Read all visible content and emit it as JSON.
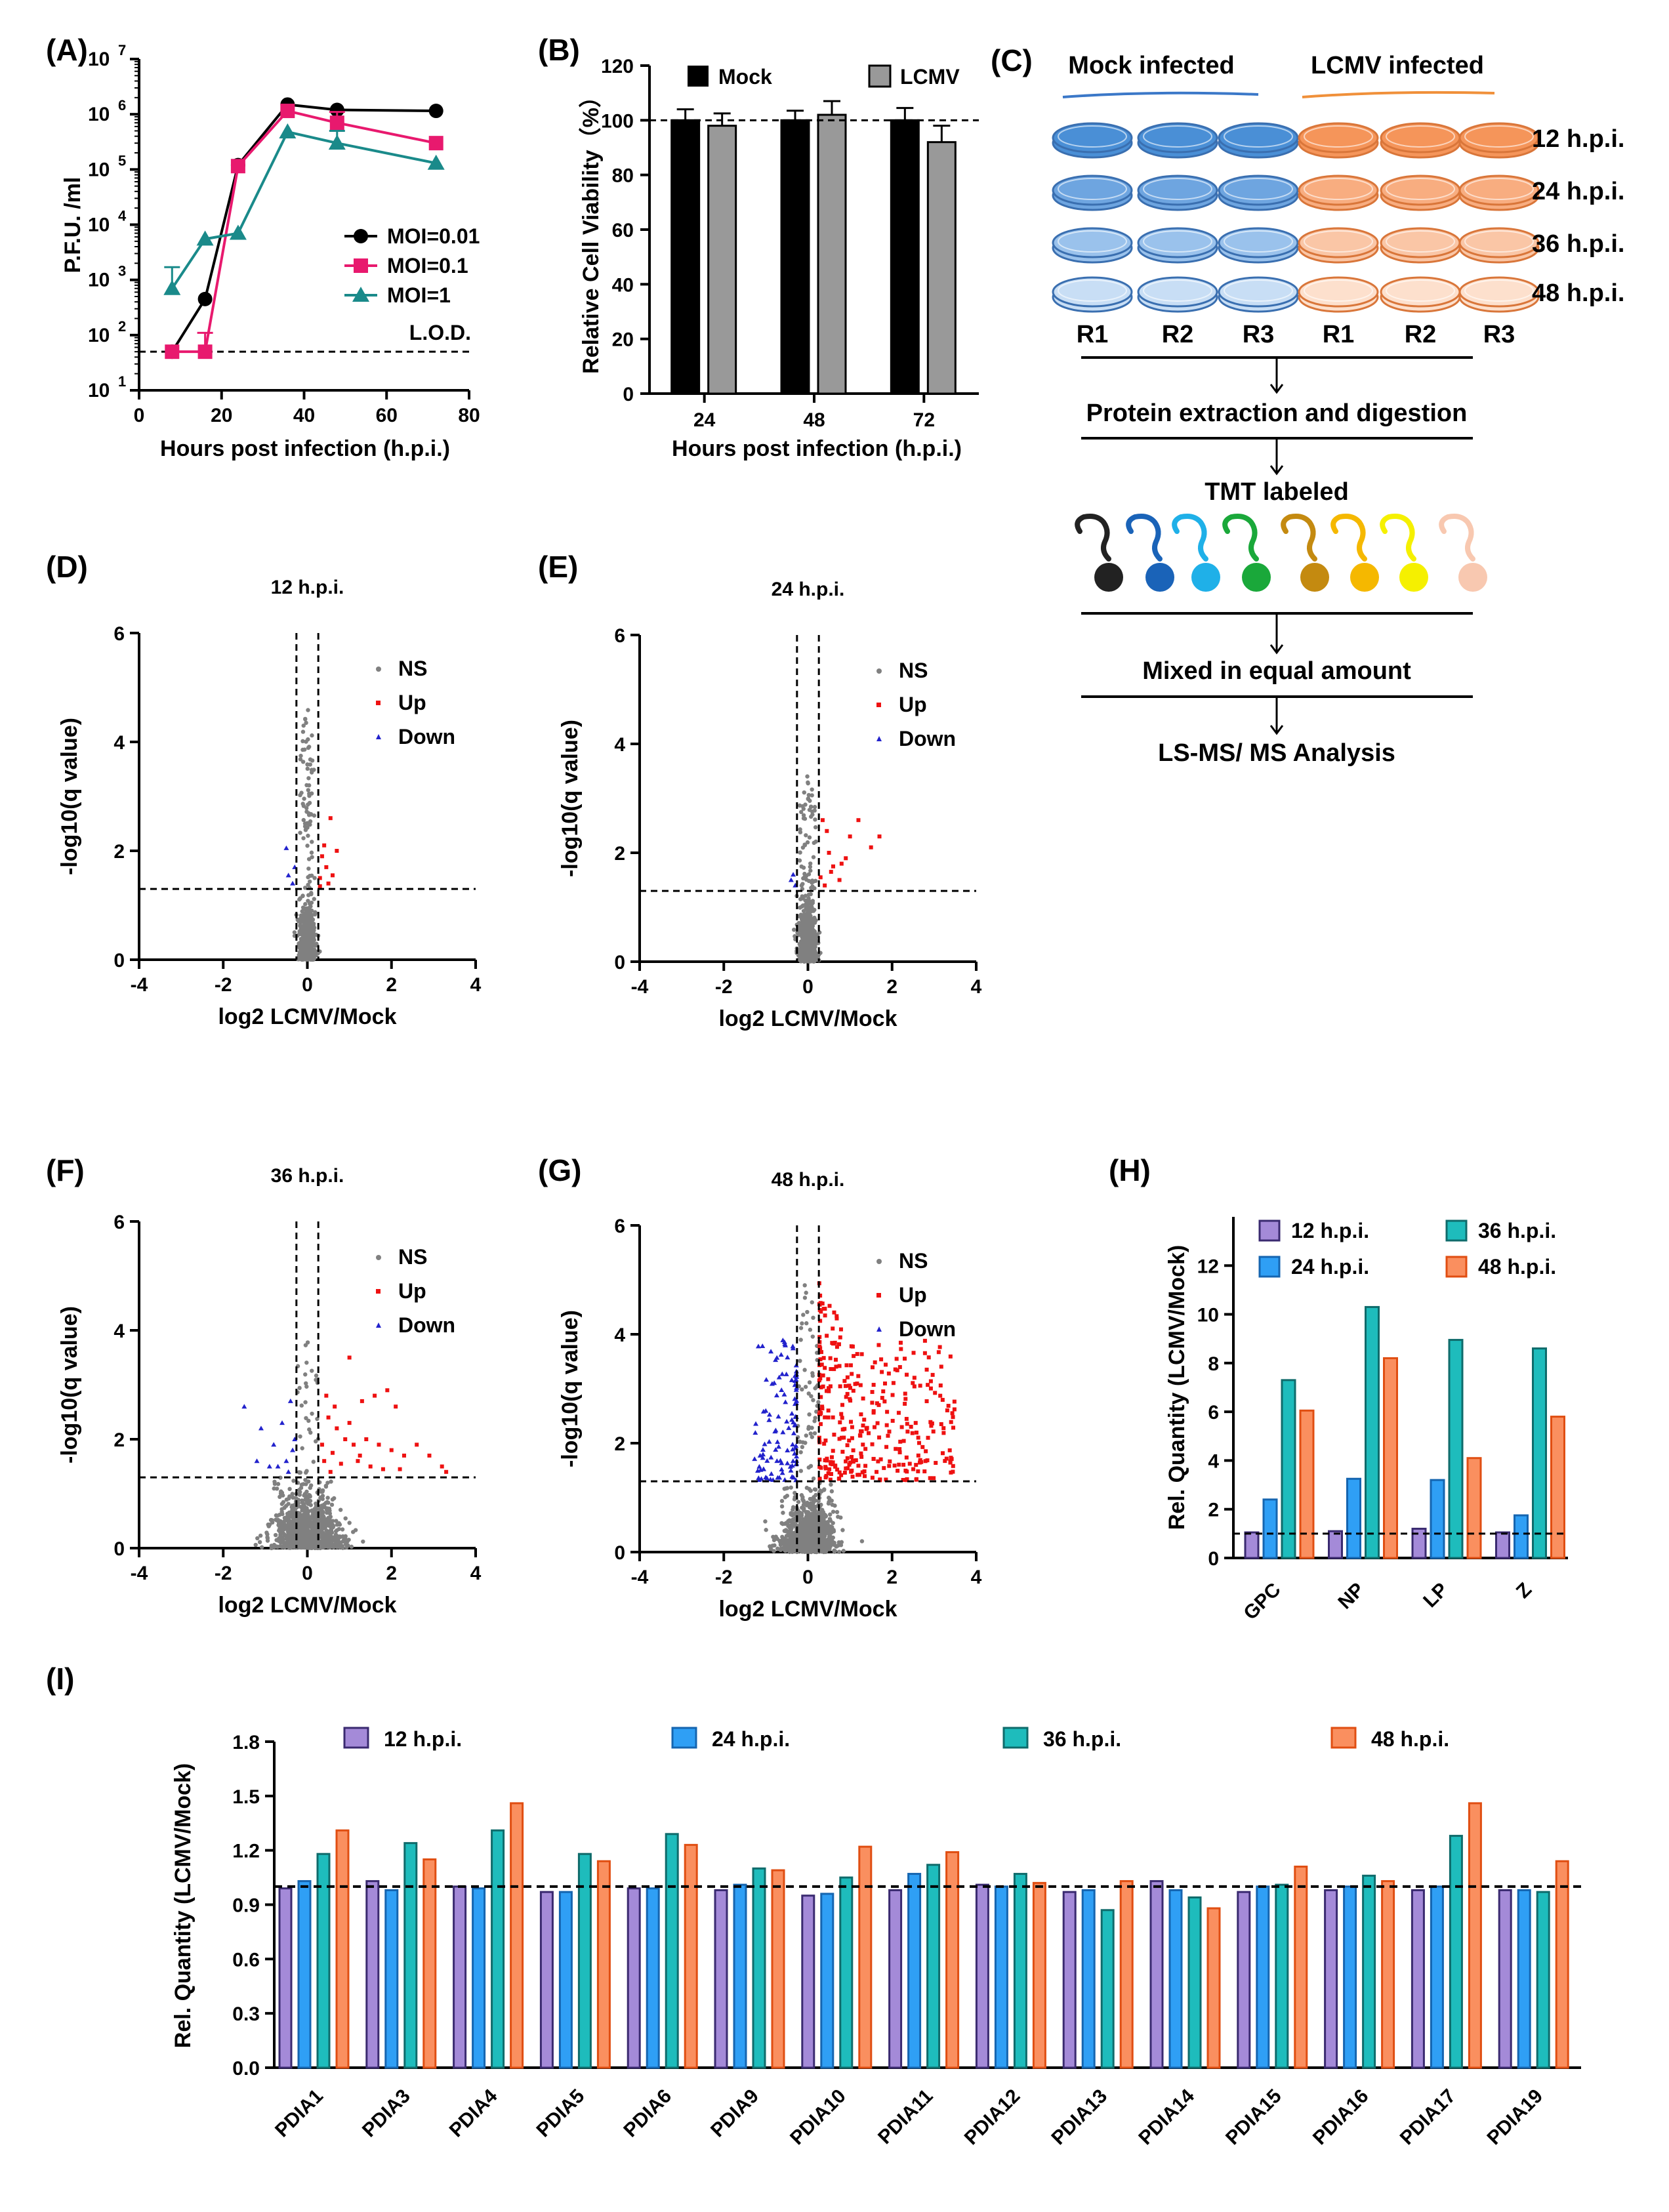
{
  "colors": {
    "black": "#000000",
    "pink": "#e8196e",
    "teal": "#1a8a8a",
    "grayBar": "#999999",
    "ns": "#808080",
    "up": "#ee1111",
    "down": "#2222cc",
    "purple": "#a48ad8",
    "blue": "#2f9ff5",
    "teal2": "#1ebcbc",
    "orange": "#fa8f5f",
    "mockLine": "#3b78c8",
    "lcmvLine": "#f0903a"
  },
  "panel_labels": [
    "(A)",
    "(B)",
    "(C)",
    "(D)",
    "(E)",
    "(F)",
    "(G)",
    "(H)",
    "(I)"
  ],
  "chart_data": [
    {
      "id": "A",
      "type": "line",
      "yscale": "log",
      "title": "",
      "xlabel": "Hours post  infection (h.p.i.)",
      "ylabel": "P.F.U. /ml",
      "xlim": [
        0,
        80
      ],
      "ylim": [
        10,
        10000000
      ],
      "xticks": [
        "0",
        "20",
        "40",
        "60",
        "80"
      ],
      "yticks_exp": [
        "1",
        "2",
        "3",
        "4",
        "5",
        "6",
        "7"
      ],
      "lod": {
        "value": 50,
        "label": "L.O.D."
      },
      "series": [
        {
          "name": "MOI=0.01",
          "marker": "circle",
          "x": [
            8,
            16,
            24,
            36,
            48,
            72
          ],
          "y": [
            50,
            450,
            120000,
            1500000,
            1200000,
            1150000
          ],
          "err": [
            0,
            0,
            0,
            0,
            0,
            0
          ]
        },
        {
          "name": "MOI=0.1",
          "marker": "square",
          "x": [
            8,
            16,
            24,
            36,
            48,
            72
          ],
          "y": [
            50,
            50,
            115000,
            1150000,
            700000,
            300000
          ],
          "err": [
            0,
            60,
            0,
            0,
            400000,
            0
          ]
        },
        {
          "name": "MOI=1",
          "marker": "triangle",
          "x": [
            8,
            16,
            24,
            36,
            48,
            72
          ],
          "y": [
            700,
            5500,
            7000,
            480000,
            300000,
            130000
          ],
          "err": [
            1000,
            0,
            0,
            0,
            200000,
            0
          ]
        }
      ]
    },
    {
      "id": "B",
      "type": "bar",
      "xlabel": "Hours post  infection (h.p.i.)",
      "ylabel": "Relative Cell Viability（%）",
      "categories": [
        "24",
        "48",
        "72"
      ],
      "ylim": [
        0,
        120
      ],
      "yticks": [
        "0",
        "20",
        "40",
        "60",
        "80",
        "100",
        "120"
      ],
      "reference": 100,
      "series": [
        {
          "name": "Mock",
          "values": [
            100,
            100,
            100
          ],
          "err": [
            4,
            3.5,
            4.5
          ]
        },
        {
          "name": "LCMV",
          "values": [
            98,
            102,
            92
          ],
          "err": [
            4.5,
            5,
            6
          ]
        }
      ]
    },
    {
      "id": "D",
      "type": "scatter",
      "title": "12 h.p.i.",
      "xlabel": "log2 LCMV/Mock",
      "ylabel": "-log10(q value)",
      "xlim": [
        -4,
        4
      ],
      "ylim": [
        0,
        6
      ],
      "xticks": [
        "-4",
        "-2",
        "0",
        "2",
        "4"
      ],
      "yticks": [
        "0",
        "2",
        "4",
        "6"
      ],
      "thresholds": {
        "x": [
          -0.26,
          0.26
        ],
        "y": 1.3
      },
      "legend": [
        "NS",
        "Up",
        "Down"
      ],
      "ns_spread": {
        "xsd": 0.09,
        "ymax": 4.7,
        "count": 700
      },
      "up": [
        [
          0.3,
          1.5
        ],
        [
          0.35,
          1.9
        ],
        [
          0.4,
          2.1
        ],
        [
          0.45,
          1.7
        ],
        [
          0.55,
          2.6
        ],
        [
          0.7,
          2.0
        ],
        [
          0.3,
          1.35
        ],
        [
          0.5,
          1.4
        ],
        [
          0.6,
          1.55
        ]
      ],
      "down": [
        [
          -0.5,
          2.05
        ],
        [
          -0.35,
          1.4
        ],
        [
          -0.3,
          1.7
        ],
        [
          -0.45,
          1.55
        ]
      ]
    },
    {
      "id": "E",
      "type": "scatter",
      "title": "24 h.p.i.",
      "xlabel": "log2 LCMV/Mock",
      "ylabel": "-log10(q value)",
      "xlim": [
        -4,
        4
      ],
      "ylim": [
        0,
        6
      ],
      "xticks": [
        "-4",
        "-2",
        "0",
        "2",
        "4"
      ],
      "yticks": [
        "0",
        "2",
        "4",
        "6"
      ],
      "thresholds": {
        "x": [
          -0.26,
          0.26
        ],
        "y": 1.3
      },
      "legend": [
        "NS",
        "Up",
        "Down"
      ],
      "ns_spread": {
        "xsd": 0.1,
        "ymax": 3.5,
        "count": 750
      },
      "up": [
        [
          0.35,
          2.6
        ],
        [
          0.5,
          2.0
        ],
        [
          0.6,
          1.75
        ],
        [
          0.75,
          1.5
        ],
        [
          0.9,
          1.9
        ],
        [
          1.0,
          2.3
        ],
        [
          1.2,
          2.6
        ],
        [
          1.5,
          2.1
        ],
        [
          1.7,
          2.3
        ],
        [
          0.4,
          1.4
        ],
        [
          0.55,
          1.65
        ],
        [
          0.3,
          1.55
        ],
        [
          0.45,
          2.4
        ],
        [
          0.8,
          1.8
        ]
      ],
      "down": [
        [
          -0.35,
          1.6
        ],
        [
          -0.3,
          1.4
        ],
        [
          -0.4,
          1.5
        ]
      ]
    },
    {
      "id": "F",
      "type": "scatter",
      "title": "36 h.p.i.",
      "xlabel": "log2 LCMV/Mock",
      "ylabel": "-log10(q value)",
      "xlim": [
        -4,
        4
      ],
      "ylim": [
        0,
        6
      ],
      "xticks": [
        "-4",
        "-2",
        "0",
        "2",
        "4"
      ],
      "yticks": [
        "0",
        "2",
        "4",
        "6"
      ],
      "thresholds": {
        "x": [
          -0.26,
          0.26
        ],
        "y": 1.3
      },
      "legend": [
        "NS",
        "Up",
        "Down"
      ],
      "ns_spread": {
        "xsd": 0.4,
        "ymax": 4.2,
        "count": 1000
      },
      "up": [
        [
          1.0,
          3.5
        ],
        [
          1.3,
          2.7
        ],
        [
          1.6,
          2.8
        ],
        [
          1.9,
          2.9
        ],
        [
          2.1,
          2.6
        ],
        [
          0.5,
          2.4
        ],
        [
          0.7,
          2.2
        ],
        [
          0.9,
          2.0
        ],
        [
          1.1,
          1.9
        ],
        [
          1.4,
          2.0
        ],
        [
          1.7,
          1.9
        ],
        [
          2.0,
          1.8
        ],
        [
          2.3,
          1.7
        ],
        [
          2.6,
          1.9
        ],
        [
          2.9,
          1.7
        ],
        [
          3.3,
          1.4
        ],
        [
          0.4,
          1.6
        ],
        [
          0.6,
          1.75
        ],
        [
          0.8,
          1.55
        ],
        [
          1.2,
          1.6
        ],
        [
          1.5,
          1.5
        ],
        [
          1.8,
          1.45
        ],
        [
          2.2,
          1.45
        ],
        [
          0.35,
          1.9
        ],
        [
          0.45,
          2.8
        ],
        [
          0.65,
          2.6
        ],
        [
          1.0,
          2.3
        ],
        [
          1.25,
          1.7
        ],
        [
          0.55,
          1.4
        ],
        [
          3.2,
          1.5
        ]
      ],
      "down": [
        [
          -1.5,
          2.6
        ],
        [
          -1.1,
          2.2
        ],
        [
          -0.8,
          1.9
        ],
        [
          -0.6,
          2.3
        ],
        [
          -0.5,
          1.6
        ],
        [
          -0.4,
          2.7
        ],
        [
          -0.35,
          1.8
        ],
        [
          -1.2,
          1.6
        ],
        [
          -0.9,
          1.5
        ],
        [
          -0.45,
          1.4
        ],
        [
          -0.7,
          1.5
        ],
        [
          -0.3,
          2.0
        ]
      ]
    },
    {
      "id": "G",
      "type": "scatter",
      "title": "48 h.p.i.",
      "xlabel": "log2 LCMV/Mock",
      "ylabel": "-log10(q value)",
      "xlim": [
        -4,
        4
      ],
      "ylim": [
        0,
        6
      ],
      "xticks": [
        "-4",
        "-2",
        "0",
        "2",
        "4"
      ],
      "yticks": [
        "0",
        "2",
        "4",
        "6"
      ],
      "thresholds": {
        "x": [
          -0.26,
          0.26
        ],
        "y": 1.3
      },
      "legend": [
        "NS",
        "Up",
        "Down"
      ],
      "ns_spread": {
        "xsd": 0.3,
        "ymax": 5.3,
        "count": 1100
      },
      "up_spread": {
        "count": 320,
        "xmax": 3.5,
        "ymax": 5.2
      },
      "down_spread": {
        "count": 110,
        "xmin": -1.0,
        "ymax": 3.9
      },
      "up": [],
      "down": []
    },
    {
      "id": "H",
      "type": "bar",
      "ylabel": "Rel. Quantity (LCMV/Mock)",
      "categories": [
        "GPC",
        "NP",
        "LP",
        "Z"
      ],
      "ylim": [
        0,
        14
      ],
      "yticks": [
        "0",
        "2",
        "4",
        "6",
        "8",
        "10",
        "12"
      ],
      "reference": 1,
      "series": [
        {
          "name": "12 h.p.i.",
          "values": [
            1.05,
            1.1,
            1.2,
            1.05
          ]
        },
        {
          "name": "24 h.p.i.",
          "values": [
            2.4,
            3.25,
            3.2,
            1.75
          ]
        },
        {
          "name": "36 h.p.i.",
          "values": [
            7.3,
            10.3,
            8.95,
            8.6
          ]
        },
        {
          "name": "48 h.p.i.",
          "values": [
            6.05,
            8.2,
            4.1,
            5.8
          ]
        }
      ]
    },
    {
      "id": "I",
      "type": "bar",
      "ylabel": "Rel. Quantity (LCMV/Mock)",
      "categories": [
        "PDIA1",
        "PDIA3",
        "PDIA4",
        "PDIA5",
        "PDIA6",
        "PDIA9",
        "PDIA10",
        "PDIA11",
        "PDIA12",
        "PDIA13",
        "PDIA14",
        "PDIA15",
        "PDIA16",
        "PDIA17",
        "PDIA19"
      ],
      "ylim": [
        0,
        1.8
      ],
      "yticks": [
        "0.0",
        "0.3",
        "0.6",
        "0.9",
        "1.2",
        "1.5",
        "1.8"
      ],
      "reference": 1,
      "series": [
        {
          "name": "12 h.p.i.",
          "values": [
            0.99,
            1.03,
            1.0,
            0.97,
            0.99,
            0.98,
            0.95,
            0.98,
            1.01,
            0.97,
            1.03,
            0.97,
            0.98,
            0.98,
            0.98
          ]
        },
        {
          "name": "24 h.p.i.",
          "values": [
            1.03,
            0.98,
            0.99,
            0.97,
            0.99,
            1.01,
            0.96,
            1.07,
            1.0,
            0.98,
            0.98,
            1.0,
            1.0,
            1.0,
            0.98
          ]
        },
        {
          "name": "36 h.p.i.",
          "values": [
            1.18,
            1.24,
            1.31,
            1.18,
            1.29,
            1.1,
            1.05,
            1.12,
            1.07,
            0.87,
            0.94,
            1.01,
            1.06,
            1.28,
            0.97
          ]
        },
        {
          "name": "48 h.p.i.",
          "values": [
            1.31,
            1.15,
            1.46,
            1.14,
            1.23,
            1.09,
            1.22,
            1.19,
            1.02,
            1.03,
            0.88,
            1.11,
            1.03,
            1.46,
            1.14
          ]
        }
      ]
    }
  ],
  "diagram_C": {
    "group_labels": [
      "Mock infected",
      "LCMV infected"
    ],
    "time_labels": [
      "12 h.p.i.",
      "24 h.p.i.",
      "36 h.p.i.",
      "48 h.p.i."
    ],
    "replicate_labels": [
      "R1",
      "R2",
      "R3",
      "R1",
      "R2",
      "R3"
    ],
    "steps": [
      "Protein extraction and digestion",
      "TMT labeled",
      "Mixed in equal amount",
      "LS-MS/ MS Analysis"
    ],
    "mock_fills": [
      "#4a8fd6",
      "#6ea5e0",
      "#9ac2ec",
      "#c8def5"
    ],
    "lcmv_fills": [
      "#f5955a",
      "#f8ad80",
      "#fac6a6",
      "#fde0cd"
    ],
    "tmt_colors": [
      "#222222",
      "#1a63b8",
      "#1fb0e8",
      "#1aa83a",
      "#c48a10",
      "#f5b800",
      "#f5f000",
      "#f8c8b0"
    ]
  }
}
